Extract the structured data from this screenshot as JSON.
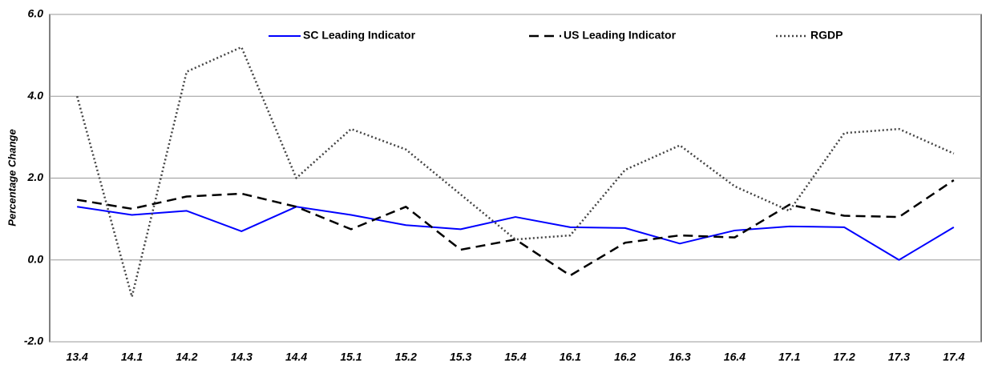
{
  "chart_data": {
    "type": "line",
    "y_label": "Percentage Change",
    "categories": [
      "13.4",
      "14.1",
      "14.2",
      "14.3",
      "14.4",
      "15.1",
      "15.2",
      "15.3",
      "15.4",
      "16.1",
      "16.2",
      "16.3",
      "16.4",
      "17.1",
      "17.2",
      "17.3",
      "17.4"
    ],
    "series": [
      {
        "name": "SC Leading Indicator",
        "color": "#0000ff",
        "style": "solid",
        "values": [
          1.3,
          1.1,
          1.2,
          0.7,
          1.3,
          1.1,
          0.85,
          0.75,
          1.05,
          0.8,
          0.78,
          0.4,
          0.72,
          0.82,
          0.8,
          0.0,
          0.8
        ]
      },
      {
        "name": "US Leading Indicator",
        "color": "#000000",
        "style": "dashed",
        "values": [
          1.47,
          1.25,
          1.55,
          1.62,
          1.3,
          0.75,
          1.3,
          0.25,
          0.5,
          -0.38,
          0.42,
          0.6,
          0.55,
          1.35,
          1.08,
          1.05,
          1.95
        ]
      },
      {
        "name": "RGDP",
        "color": "#444444",
        "style": "dotted",
        "values": [
          4.0,
          -0.9,
          4.6,
          5.2,
          2.0,
          3.2,
          2.7,
          1.6,
          0.5,
          0.6,
          2.2,
          2.8,
          1.8,
          1.2,
          3.1,
          3.2,
          2.6
        ]
      }
    ],
    "ylim": [
      -2,
      6
    ],
    "yticks": [
      {
        "value": -2,
        "label": "-2.0"
      },
      {
        "value": 0,
        "label": "0.0"
      },
      {
        "value": 2,
        "label": "2.0"
      },
      {
        "value": 4,
        "label": "4.0"
      },
      {
        "value": 6,
        "label": "6.0"
      }
    ],
    "grid": true
  }
}
